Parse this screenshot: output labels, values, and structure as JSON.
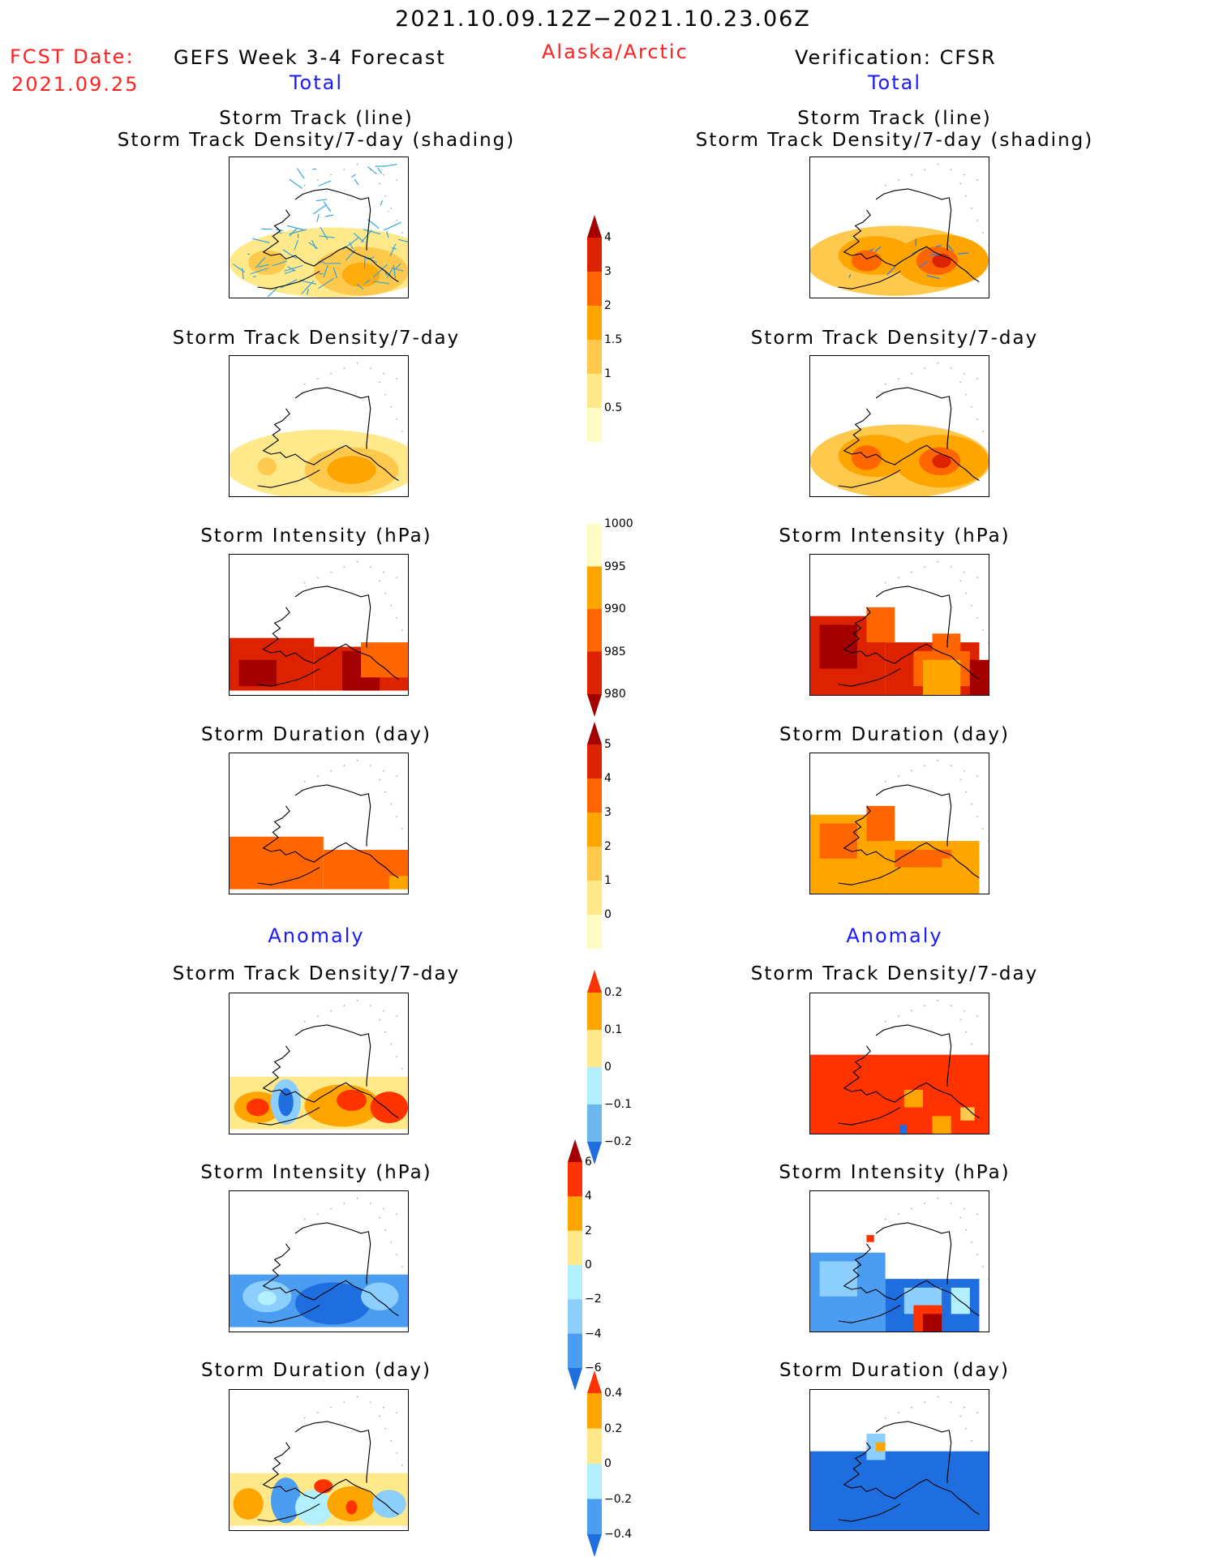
{
  "header": {
    "period": "2021.10.09.12Z−2021.10.23.06Z",
    "fcst_label": "FCST Date:",
    "fcst_date": "2021.09.25",
    "forecast_title": "GEFS Week 3-4 Forecast",
    "region": "Alaska/Arctic",
    "verification_title": "Verification: CFSR",
    "left_section_total": "Total",
    "right_section_total": "Total",
    "left_section_anomaly": "Anomaly",
    "right_section_anomaly": "Anomaly"
  },
  "panels": {
    "track_line_1": "Storm Track (line)",
    "track_line_2": "Storm Track Density/7-day (shading)",
    "density": "Storm Track Density/7-day",
    "intensity": "Storm Intensity (hPa)",
    "duration": "Storm Duration (day)"
  },
  "colorbars": {
    "density_total": {
      "labels": [
        "4",
        "3",
        "2",
        "1.5",
        "1",
        "0.5"
      ],
      "colors": [
        "#a50000",
        "#dd2200",
        "#ff6600",
        "#ffa500",
        "#ffc94d",
        "#ffe98a",
        "#fffbc4"
      ]
    },
    "intensity_total": {
      "labels": [
        "1000",
        "995",
        "990",
        "985",
        "980"
      ],
      "colors": [
        "#fffbc4",
        "#ffa500",
        "#ff6600",
        "#dd2200",
        "#a50000"
      ]
    },
    "duration_total": {
      "labels": [
        "5",
        "4",
        "3",
        "2",
        "1",
        "0"
      ],
      "colors": [
        "#a50000",
        "#dd2200",
        "#ff6600",
        "#ffa500",
        "#ffc94d",
        "#ffe98a",
        "#fffbc4"
      ]
    },
    "density_anom": {
      "labels": [
        "0.2",
        "0.1",
        "0",
        "−0.1",
        "−0.2"
      ],
      "colors": [
        "#ff3300",
        "#ffa500",
        "#ffe98a",
        "#b3f0ff",
        "#6bb8f0",
        "#1e6ee0"
      ]
    },
    "intensity_anom": {
      "labels": [
        "6",
        "4",
        "2",
        "0",
        "−2",
        "−4",
        "−6"
      ],
      "colors": [
        "#a50000",
        "#ff3300",
        "#ffa500",
        "#ffe98a",
        "#b3f0ff",
        "#8ccfff",
        "#4a9df0",
        "#1e6ee0"
      ]
    },
    "duration_anom": {
      "labels": [
        "0.4",
        "0.2",
        "0",
        "−0.2",
        "−0.4"
      ],
      "colors": [
        "#ff3300",
        "#ffa500",
        "#ffe98a",
        "#b3f0ff",
        "#4a9df0",
        "#1e6ee0"
      ]
    }
  }
}
